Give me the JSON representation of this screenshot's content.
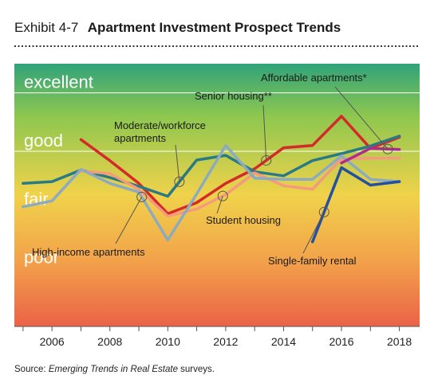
{
  "exhibit": {
    "label": "Exhibit 4-7",
    "title": "Apartment Investment Prospect Trends"
  },
  "source": {
    "prefix": "Source: ",
    "publication": "Emerging Trends in Real Estate",
    "suffix": " surveys."
  },
  "chart_data": {
    "type": "line",
    "x": [
      2005,
      2006,
      2007,
      2008,
      2009,
      2010,
      2011,
      2012,
      2013,
      2014,
      2015,
      2016,
      2017,
      2018
    ],
    "xlim": [
      2004.7,
      2018.7
    ],
    "xticks": [
      "2006",
      "2008",
      "2010",
      "2012",
      "2014",
      "2016",
      "2018"
    ],
    "ylim": [
      1,
      5.5
    ],
    "rating_bands": [
      {
        "label": "excellent",
        "value": 5
      },
      {
        "label": "good",
        "value": 4
      },
      {
        "label": "fair",
        "value": 3
      },
      {
        "label": "poor",
        "value": 2
      }
    ],
    "gridlines": [
      4,
      5
    ],
    "background_gradient": [
      "#2fa37a",
      "#8ec74f",
      "#f0d24a",
      "#f2a24a",
      "#eb6248"
    ],
    "series": [
      {
        "name": "Senior housing**",
        "color": "#d42a2a",
        "x": [
          2007,
          2008,
          2009,
          2010,
          2011,
          2012,
          2013,
          2014,
          2015,
          2016,
          2017,
          2018
        ],
        "values": [
          4.2,
          3.84,
          3.45,
          2.93,
          3.12,
          3.45,
          3.7,
          4.06,
          4.1,
          4.6,
          4.05,
          4.24
        ]
      },
      {
        "name": "Moderate/workforce apartments",
        "color": "#2a7a86",
        "x": [
          2005,
          2006,
          2007,
          2008,
          2009,
          2010,
          2011,
          2012,
          2013,
          2014,
          2015,
          2016,
          2017,
          2018
        ],
        "values": [
          3.45,
          3.48,
          3.68,
          3.55,
          3.4,
          3.23,
          3.85,
          3.93,
          3.65,
          3.58,
          3.84,
          3.96,
          4.09,
          4.26
        ]
      },
      {
        "name": "Student housing",
        "color": "#f59a7c",
        "x": [
          2007,
          2008,
          2009,
          2010,
          2011,
          2012,
          2013,
          2014,
          2015,
          2016,
          2017,
          2018
        ],
        "values": [
          3.66,
          3.62,
          3.35,
          2.89,
          3.01,
          3.26,
          3.63,
          3.41,
          3.35,
          3.87,
          3.88,
          3.88
        ]
      },
      {
        "name": "High-income apartments",
        "color": "#8caac0",
        "x": [
          2005,
          2006,
          2007,
          2008,
          2009,
          2010,
          2011,
          2012,
          2013,
          2014,
          2015,
          2016,
          2017,
          2018
        ],
        "values": [
          3.05,
          3.15,
          3.69,
          3.45,
          3.3,
          2.48,
          3.27,
          4.1,
          3.54,
          3.52,
          3.52,
          3.92,
          3.52,
          3.48
        ]
      },
      {
        "name": "Affordable apartments*",
        "color": "#b02c8a",
        "x": [
          2016,
          2017,
          2018
        ],
        "values": [
          3.8,
          4.05,
          4.03
        ]
      },
      {
        "name": "Single-family rental",
        "color": "#2550a0",
        "x": [
          2015,
          2016,
          2017,
          2018
        ],
        "values": [
          2.45,
          3.72,
          3.42,
          3.48
        ]
      }
    ],
    "annotations": [
      {
        "text": "Affordable apartments*",
        "series": 4,
        "point_x": 2017.6
      },
      {
        "text": "Senior housing**",
        "series": 0,
        "point_x": 2013.4
      },
      {
        "text": "Moderate/workforce",
        "series": 1,
        "point_x": 2010.4
      },
      {
        "text": "apartments",
        "series": 1,
        "point_x": 2010.4
      },
      {
        "text": "Student housing",
        "series": 2,
        "point_x": 2011.9
      },
      {
        "text": "High-income apartments",
        "series": 3,
        "point_x": 2009.1
      },
      {
        "text": "Single-family rental",
        "series": 5,
        "point_x": 2015.4
      }
    ]
  }
}
